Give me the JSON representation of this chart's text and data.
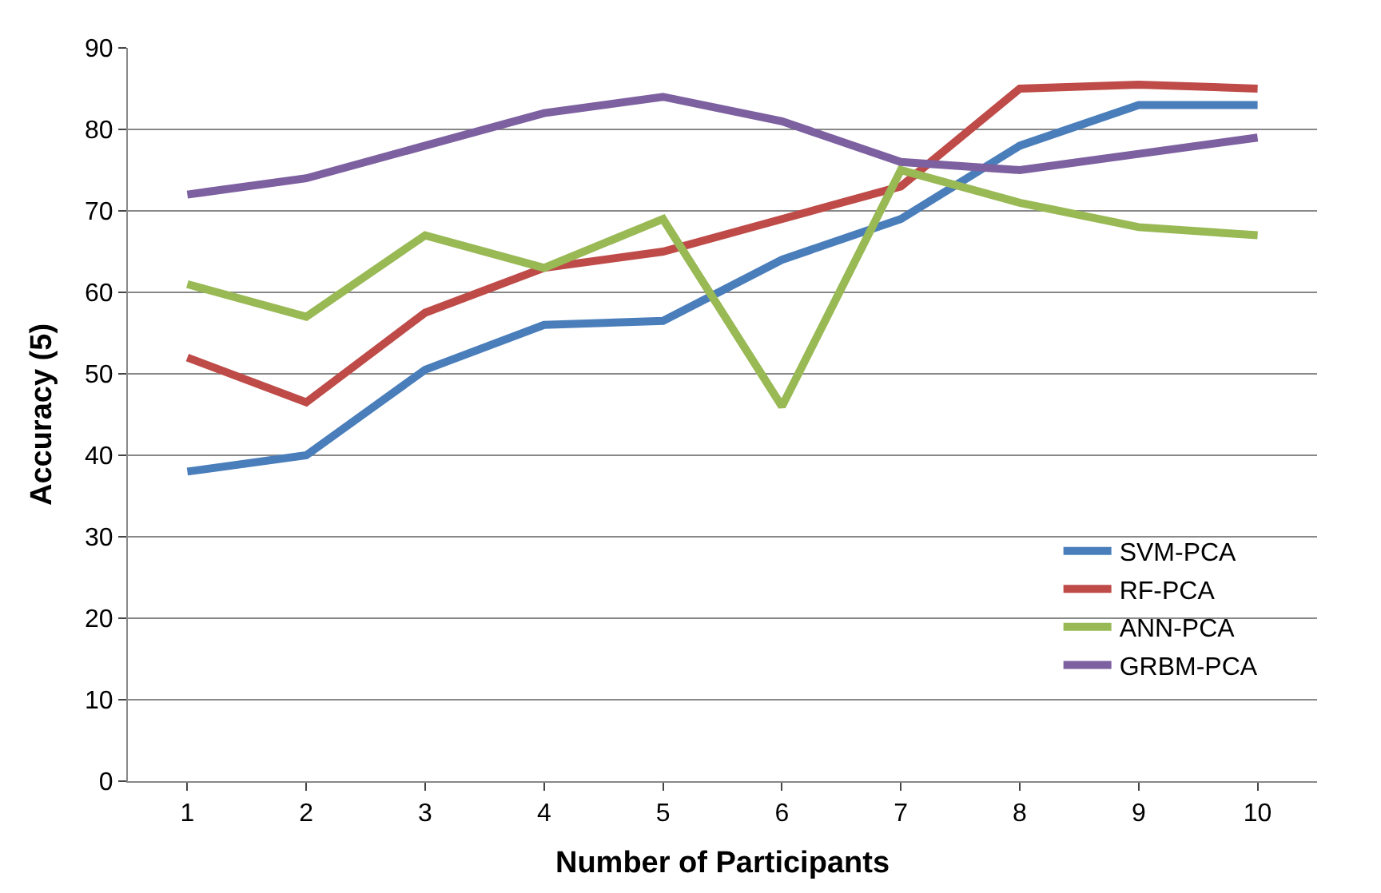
{
  "chart_data": {
    "type": "line",
    "xlabel": "Number of Participants",
    "ylabel": "Accuracy (5)",
    "categories": [
      "1",
      "2",
      "3",
      "4",
      "5",
      "6",
      "7",
      "8",
      "9",
      "10"
    ],
    "series": [
      {
        "name": "SVM-PCA",
        "color": "#4a7ebb",
        "values": [
          38,
          40,
          50.5,
          56,
          56.5,
          64,
          69,
          78,
          83,
          83
        ]
      },
      {
        "name": "RF-PCA",
        "color": "#be4b48",
        "values": [
          52,
          46.5,
          57.5,
          63,
          65,
          69,
          73,
          85,
          85.5,
          85
        ]
      },
      {
        "name": "ANN-PCA",
        "color": "#98b954",
        "values": [
          61,
          57,
          67,
          63,
          69,
          46,
          75,
          71,
          68,
          67
        ]
      },
      {
        "name": "GRBM-PCA",
        "color": "#7d60a0",
        "values": [
          72,
          74,
          78,
          82,
          84,
          81,
          76,
          75,
          77,
          79
        ]
      }
    ],
    "ylim": [
      0,
      90
    ],
    "yticks": [
      0,
      10,
      20,
      30,
      40,
      50,
      60,
      70,
      80,
      90
    ],
    "grid": "y",
    "legend": "right",
    "marker": "none",
    "line_style": "solid"
  }
}
